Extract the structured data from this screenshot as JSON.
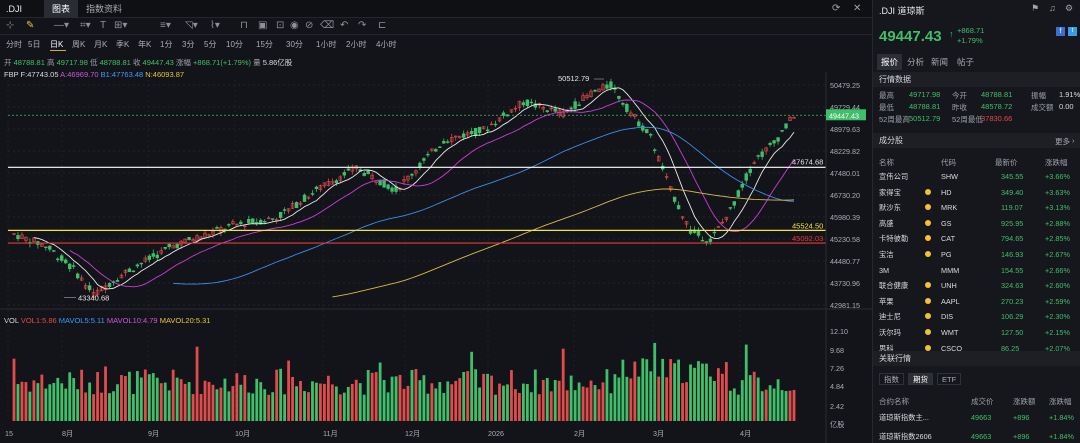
{
  "tabbar": {
    "symbol": ".DJI",
    "tabs": [
      "图表",
      "指数资料"
    ]
  },
  "periods": [
    {
      "label": "分时"
    },
    {
      "label": "5日"
    },
    {
      "label": "日K",
      "active": true
    },
    {
      "label": "周K"
    },
    {
      "label": "月K"
    },
    {
      "label": "季K"
    },
    {
      "label": "年K"
    },
    {
      "label": "1分"
    },
    {
      "label": "3分"
    },
    {
      "label": "5分"
    },
    {
      "label": "10分"
    },
    {
      "label": "15分"
    },
    {
      "label": "30分"
    },
    {
      "label": "1小时"
    },
    {
      "label": "2小时"
    },
    {
      "label": "4小时"
    }
  ],
  "ohlc": {
    "open_k": "开",
    "open": "48788.81",
    "high_k": "高",
    "high": "49717.98",
    "low_k": "低",
    "low": "48788.81",
    "close_k": "收",
    "close": "49447.43",
    "chg_k": "涨幅",
    "chg": "+868.71(+1.79%)",
    "vol_k": "量",
    "vol": "5.86亿股"
  },
  "indicators": {
    "fbp": "FBP",
    "f": "F:47743.05",
    "a": "A:46969.70",
    "b": "B1:47763.48",
    "n": "N:46093.87"
  },
  "volume_legend": {
    "vol": "VOL",
    "vol1": "VOL1:5.86",
    "ma5": "MAVOL5:5.11",
    "ma10": "MAVOL10:4.79",
    "ma20": "MAVOL20:5.31"
  },
  "price_axis": [
    "50479.25",
    "49729.44",
    "48979.63",
    "48229.82",
    "47480.01",
    "46730.20",
    "45980.39",
    "45230.58",
    "44480.77",
    "43730.96",
    "42981.15"
  ],
  "price_tag": "49447.43",
  "vol_axis": [
    "12.10",
    "9.68",
    "7.26",
    "4.84",
    "2.42",
    "亿股"
  ],
  "time_axis": [
    "15",
    "8月",
    "9月",
    "10月",
    "11月",
    "12月",
    "2026",
    "2月",
    "3月",
    "4月"
  ],
  "annotations": {
    "high": "50512.79",
    "low": "43340.68",
    "line_white": "47674.68",
    "line_yellow": "45524.50",
    "line_red": "45092.03"
  },
  "colors": {
    "up": "#e04b4b",
    "down": "#3fbf6a",
    "ma_white": "#e9e9e9",
    "ma_magenta": "#c93ed8",
    "ma_blue": "#3b8ee8",
    "ma_yellow": "#d8b94a"
  },
  "panel": {
    "title": ".DJI 道琼斯",
    "price": "49447.43",
    "change": "+868.71",
    "pct": "+1.79%",
    "tabs": [
      "报价",
      "分析",
      "新闻",
      "帖子"
    ],
    "quote_title": "行情数据",
    "quote": [
      {
        "k": "最高",
        "v": "49717.98",
        "k2": "今开",
        "v2": "48788.81",
        "k3": "振幅",
        "v3": "1.91%"
      },
      {
        "k": "最低",
        "v": "48788.81",
        "k2": "昨收",
        "v2": "48578.72",
        "k3": "成交额",
        "v3": "0.00"
      },
      {
        "k": "52周最高",
        "v": "50512.79",
        "k2": "52周最低",
        "v2": "37830.66",
        "k3": "",
        "v3": ""
      }
    ],
    "const_title": "成分股",
    "more": "更多",
    "const_headers": [
      "名称",
      "代码",
      "最新价",
      "涨跌幅"
    ],
    "constituents": [
      {
        "name": "宣伟公司",
        "code": "SHW",
        "price": "345.55",
        "pct": "+3.66%",
        "dot": false
      },
      {
        "name": "家得宝",
        "code": "HD",
        "price": "349.40",
        "pct": "+3.63%",
        "dot": true
      },
      {
        "name": "默沙东",
        "code": "MRK",
        "price": "119.07",
        "pct": "+3.13%",
        "dot": true
      },
      {
        "name": "高盛",
        "code": "GS",
        "price": "925.95",
        "pct": "+2.88%",
        "dot": true
      },
      {
        "name": "卡特彼勒",
        "code": "CAT",
        "price": "794.65",
        "pct": "+2.85%",
        "dot": true
      },
      {
        "name": "宝洁",
        "code": "PG",
        "price": "146.93",
        "pct": "+2.67%",
        "dot": true
      },
      {
        "name": "3M",
        "code": "MMM",
        "price": "154.55",
        "pct": "+2.66%",
        "dot": false
      },
      {
        "name": "联合健康",
        "code": "UNH",
        "price": "324.63",
        "pct": "+2.60%",
        "dot": true
      },
      {
        "name": "苹果",
        "code": "AAPL",
        "price": "270.23",
        "pct": "+2.59%",
        "dot": true
      },
      {
        "name": "迪士尼",
        "code": "DIS",
        "price": "106.29",
        "pct": "+2.30%",
        "dot": true
      },
      {
        "name": "沃尔玛",
        "code": "WMT",
        "price": "127.50",
        "pct": "+2.15%",
        "dot": true
      },
      {
        "name": "思科",
        "code": "CSCO",
        "price": "86.25",
        "pct": "+2.07%",
        "dot": true
      }
    ],
    "related_title": "关联行情",
    "related_tabs": [
      "指数",
      "期货",
      "ETF"
    ],
    "related_headers": [
      "合约名称",
      "成交价",
      "涨跌额",
      "涨跌幅"
    ],
    "related": [
      {
        "name": "道琼斯指数主...",
        "price": "49663",
        "chg": "+896",
        "pct": "+1.84%"
      },
      {
        "name": "道琼斯指数2606",
        "price": "49663",
        "chg": "+896",
        "pct": "+1.84%"
      }
    ]
  }
}
